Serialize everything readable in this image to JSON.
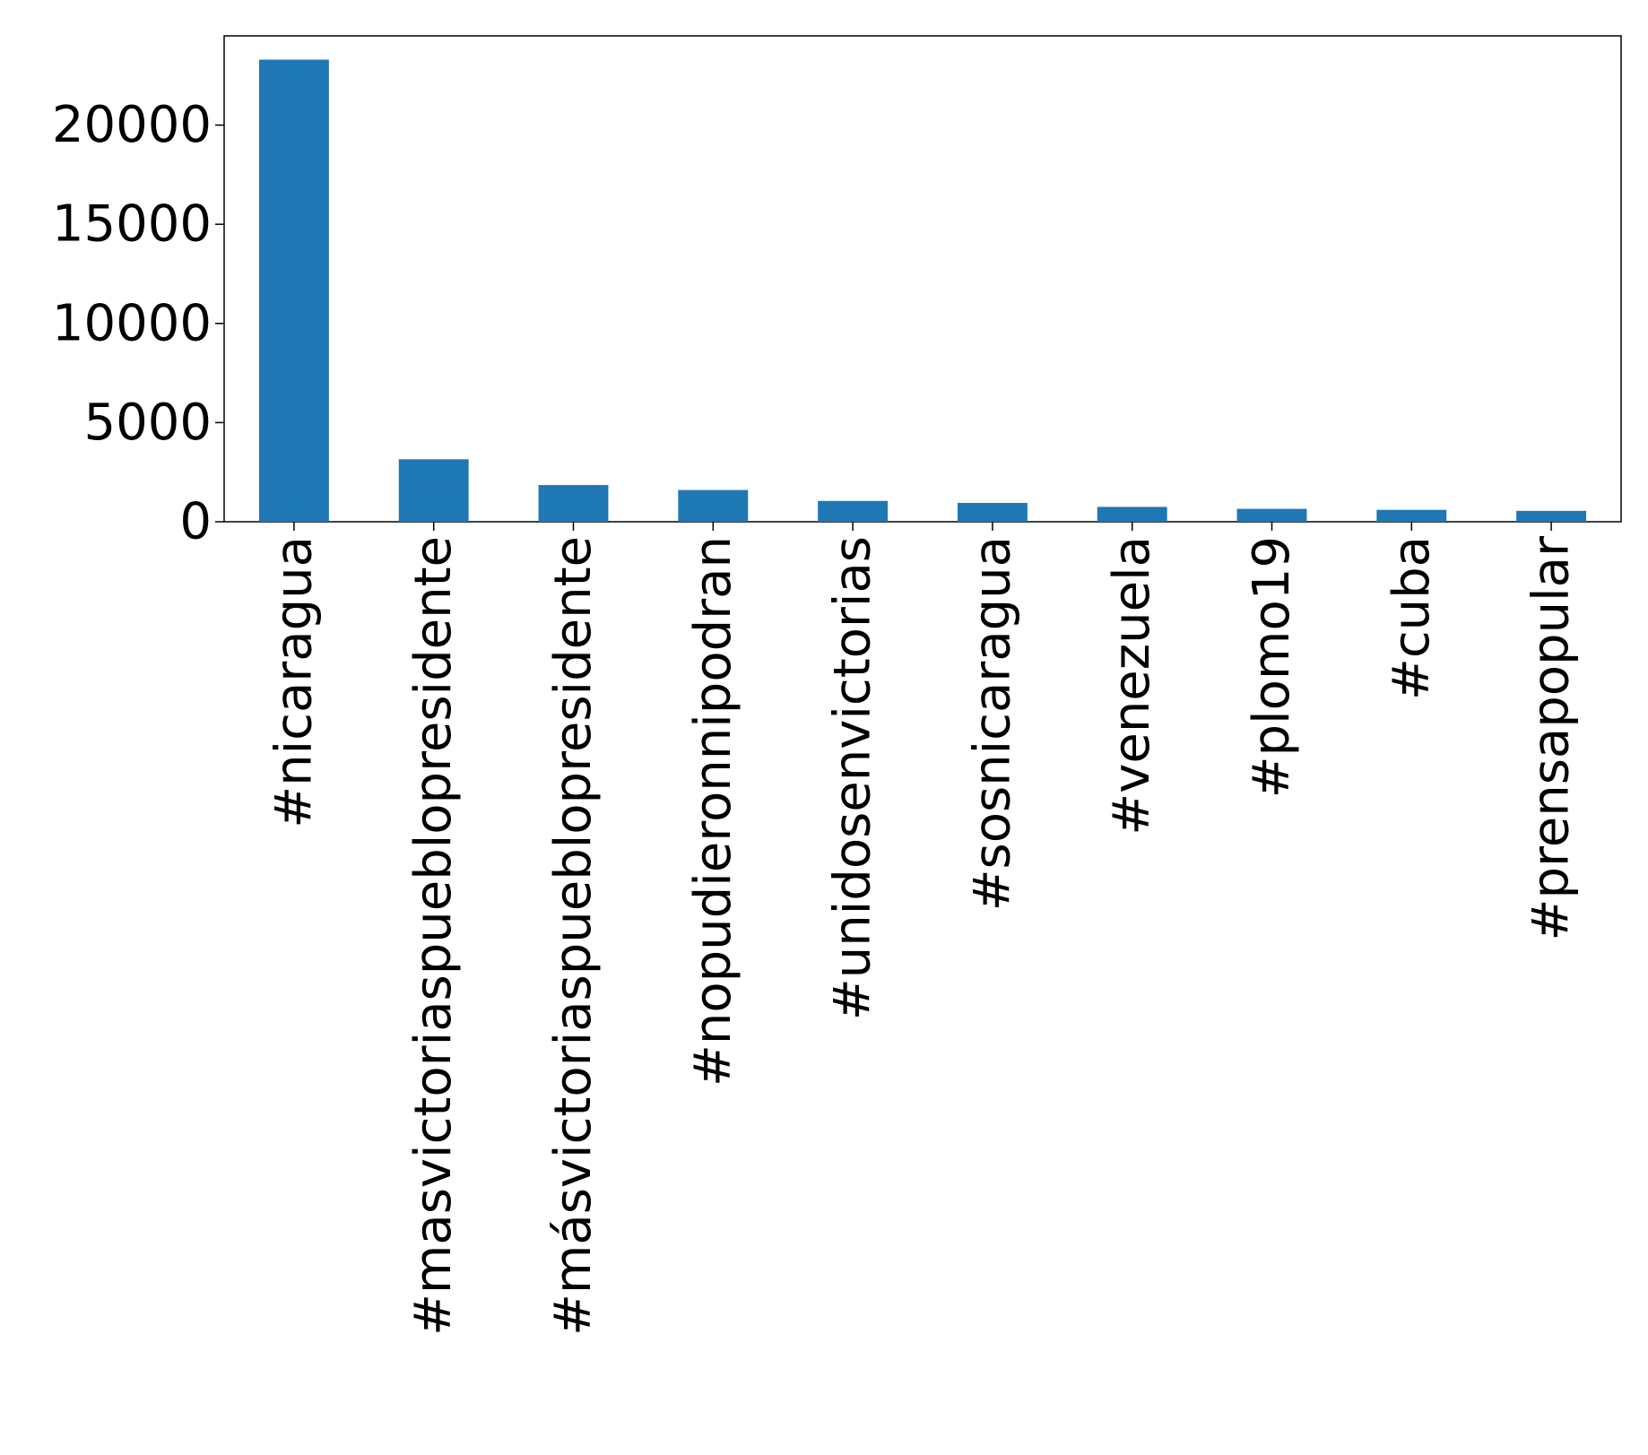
{
  "chart_data": {
    "type": "bar",
    "title": "",
    "xlabel": "",
    "ylabel": "",
    "categories": [
      "#nicaragua",
      "#masvictoriaspueblopresidente",
      "#másvictoriaspueblopresidente",
      "#nopudieronnipodran",
      "#unidosenvictorias",
      "#sosnicaragua",
      "#venezuela",
      "#plomo19",
      "#cuba",
      "#prensapopular"
    ],
    "values": [
      23300,
      3150,
      1850,
      1600,
      1050,
      950,
      750,
      650,
      600,
      550
    ],
    "ylim": [
      0,
      24500
    ],
    "yticks": [
      0,
      5000,
      10000,
      15000,
      20000
    ],
    "bar_color": "#1f77b4",
    "grid": false,
    "legend": "none"
  }
}
